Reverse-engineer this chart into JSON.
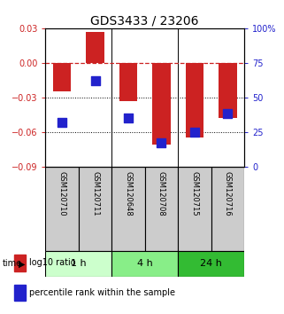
{
  "title": "GDS3433 / 23206",
  "samples": [
    "GSM120710",
    "GSM120711",
    "GSM120648",
    "GSM120708",
    "GSM120715",
    "GSM120716"
  ],
  "log10_ratio": [
    -0.025,
    0.027,
    -0.033,
    -0.071,
    -0.065,
    -0.048
  ],
  "percentile_rank": [
    32,
    62,
    35,
    17,
    25,
    38
  ],
  "time_groups": [
    {
      "label": "1 h",
      "start": 0,
      "end": 1,
      "color": "#ccffcc"
    },
    {
      "label": "4 h",
      "start": 2,
      "end": 3,
      "color": "#88ee88"
    },
    {
      "label": "24 h",
      "start": 4,
      "end": 5,
      "color": "#33bb33"
    }
  ],
  "left_ylim": [
    -0.09,
    0.03
  ],
  "left_yticks": [
    0.03,
    0,
    -0.03,
    -0.06,
    -0.09
  ],
  "right_ylim": [
    0,
    100
  ],
  "right_yticks": [
    100,
    75,
    50,
    25,
    0
  ],
  "right_yticklabels": [
    "100%",
    "75",
    "50",
    "25",
    "0"
  ],
  "bar_color": "#cc2222",
  "dot_color": "#2222cc",
  "zero_line_color": "#cc2222",
  "bar_width": 0.55,
  "dot_size": 55,
  "label_bg": "#cccccc",
  "label_fontsize": 6,
  "main_fontsize": 7,
  "title_fontsize": 10
}
